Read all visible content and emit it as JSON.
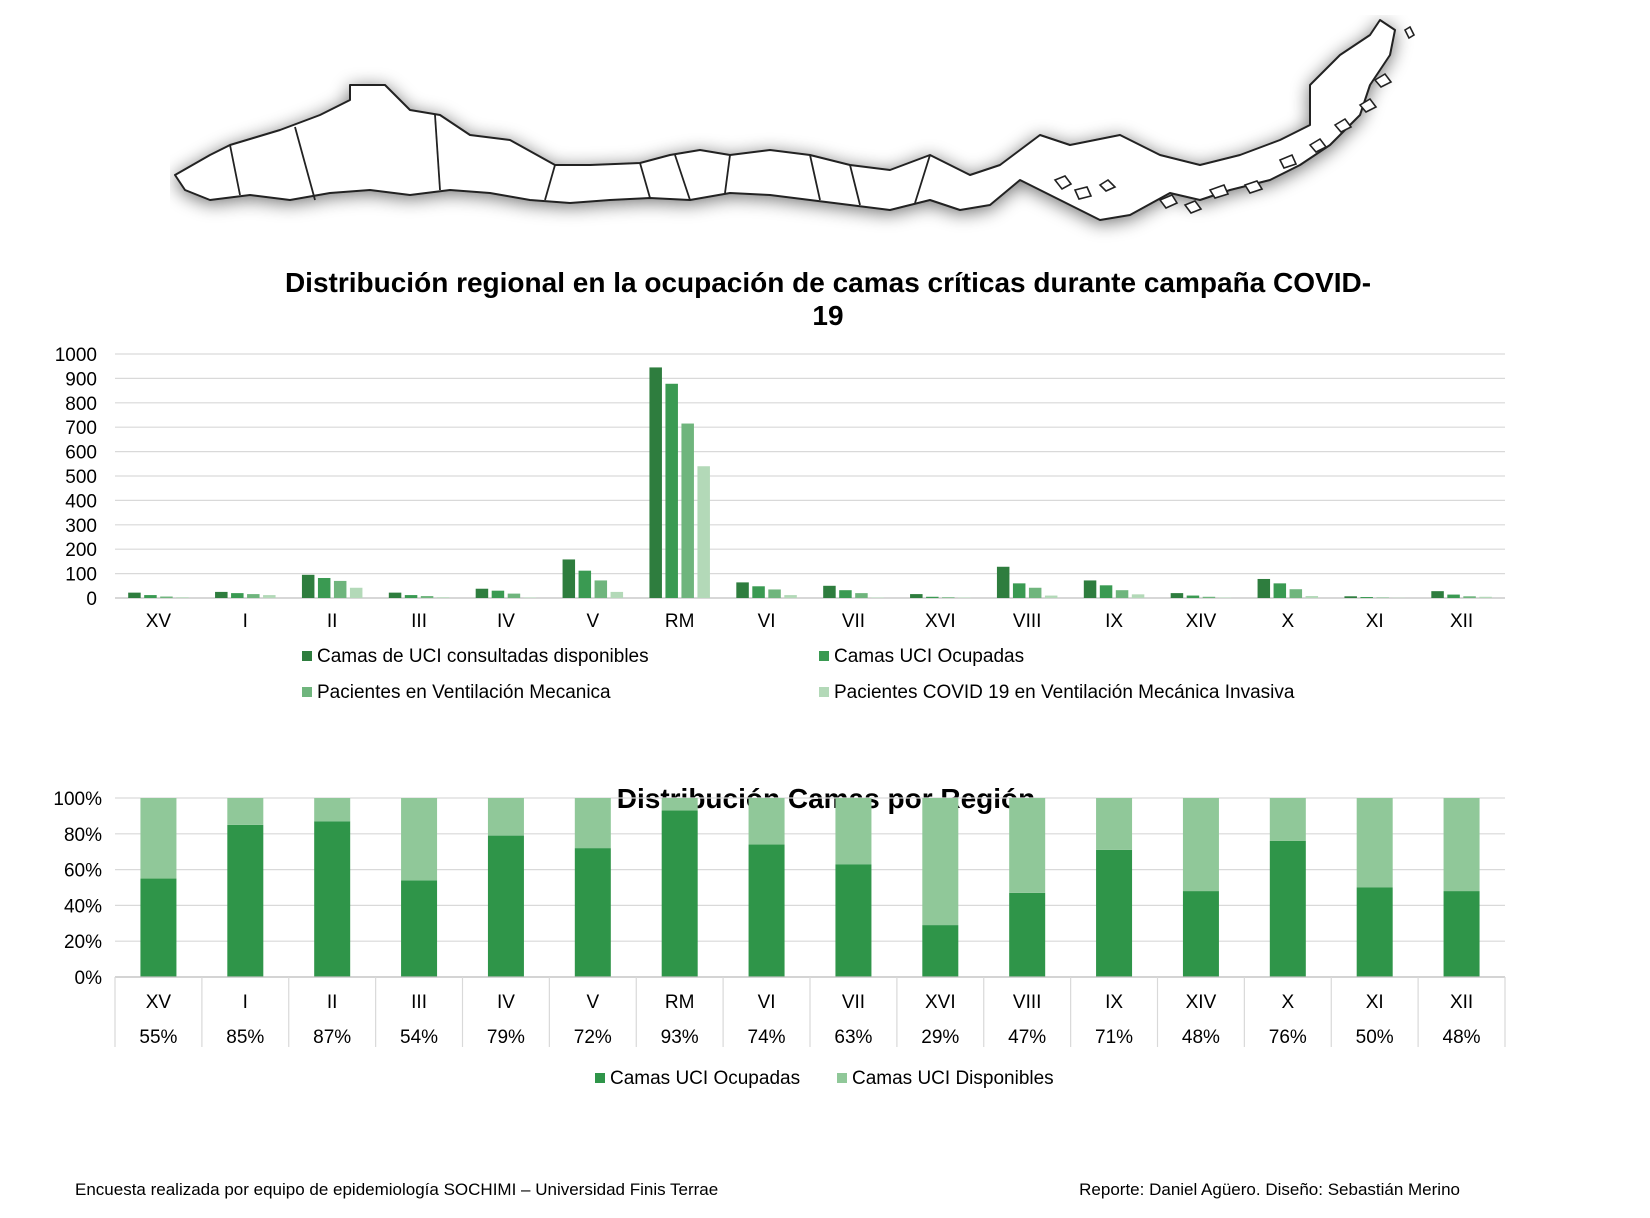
{
  "chart_data": [
    {
      "type": "bar",
      "title": "Distribución regional en la ocupación de camas críticas durante campaña COVID-19",
      "categories": [
        "XV",
        "I",
        "II",
        "III",
        "IV",
        "V",
        "RM",
        "VI",
        "VII",
        "XVI",
        "VIII",
        "IX",
        "XIV",
        "X",
        "XI",
        "XII"
      ],
      "ylim": [
        0,
        1000
      ],
      "yticks": [
        0,
        100,
        200,
        300,
        400,
        500,
        600,
        700,
        800,
        900,
        1000
      ],
      "grid": true,
      "legend_position": "bottom",
      "series": [
        {
          "name": "Camas de UCI consultadas disponibles",
          "color": "#2e7d3e",
          "values": [
            22,
            25,
            95,
            22,
            38,
            158,
            945,
            64,
            50,
            16,
            128,
            72,
            20,
            78,
            7,
            28
          ]
        },
        {
          "name": "Camas UCI Ocupadas",
          "color": "#3a9a52",
          "values": [
            12,
            20,
            82,
            12,
            30,
            112,
            878,
            48,
            32,
            5,
            60,
            52,
            10,
            60,
            4,
            14
          ]
        },
        {
          "name": "Pacientes en Ventilación Mecanica",
          "color": "#6fb57d",
          "values": [
            6,
            16,
            70,
            8,
            18,
            72,
            715,
            35,
            20,
            3,
            42,
            32,
            5,
            36,
            2,
            7
          ]
        },
        {
          "name": "Pacientes COVID 19 en Ventilación Mecánica Invasiva",
          "color": "#b3d9b8",
          "values": [
            3,
            12,
            42,
            3,
            2,
            25,
            540,
            12,
            2,
            2,
            10,
            15,
            2,
            8,
            1,
            5
          ]
        }
      ]
    },
    {
      "type": "bar",
      "stacked": "percent",
      "title": "Distribución Camas por Región",
      "categories": [
        "XV",
        "I",
        "II",
        "III",
        "IV",
        "V",
        "RM",
        "VI",
        "VII",
        "XVI",
        "VIII",
        "IX",
        "XIV",
        "X",
        "XI",
        "XII"
      ],
      "ylim": [
        0,
        100
      ],
      "yticks": [
        "0%",
        "20%",
        "40%",
        "60%",
        "80%",
        "100%"
      ],
      "grid": true,
      "legend_position": "bottom",
      "table_row": [
        "55%",
        "85%",
        "87%",
        "54%",
        "79%",
        "72%",
        "93%",
        "74%",
        "63%",
        "29%",
        "47%",
        "71%",
        "48%",
        "76%",
        "50%",
        "48%"
      ],
      "series": [
        {
          "name": "Camas UCI Ocupadas",
          "color": "#2f9549",
          "values": [
            55,
            85,
            87,
            54,
            79,
            72,
            93,
            74,
            63,
            29,
            47,
            71,
            48,
            76,
            50,
            48
          ]
        },
        {
          "name": "Camas UCI Disponibles",
          "color": "#90c899",
          "values": [
            45,
            15,
            13,
            46,
            21,
            28,
            7,
            26,
            37,
            71,
            53,
            29,
            52,
            24,
            50,
            52
          ]
        }
      ]
    }
  ],
  "footer": {
    "left": "Encuesta realizada por equipo de epidemiología SOCHIMI – Universidad Finis Terrae",
    "right": "Reporte: Daniel Agüero. Diseño: Sebastián Merino"
  }
}
